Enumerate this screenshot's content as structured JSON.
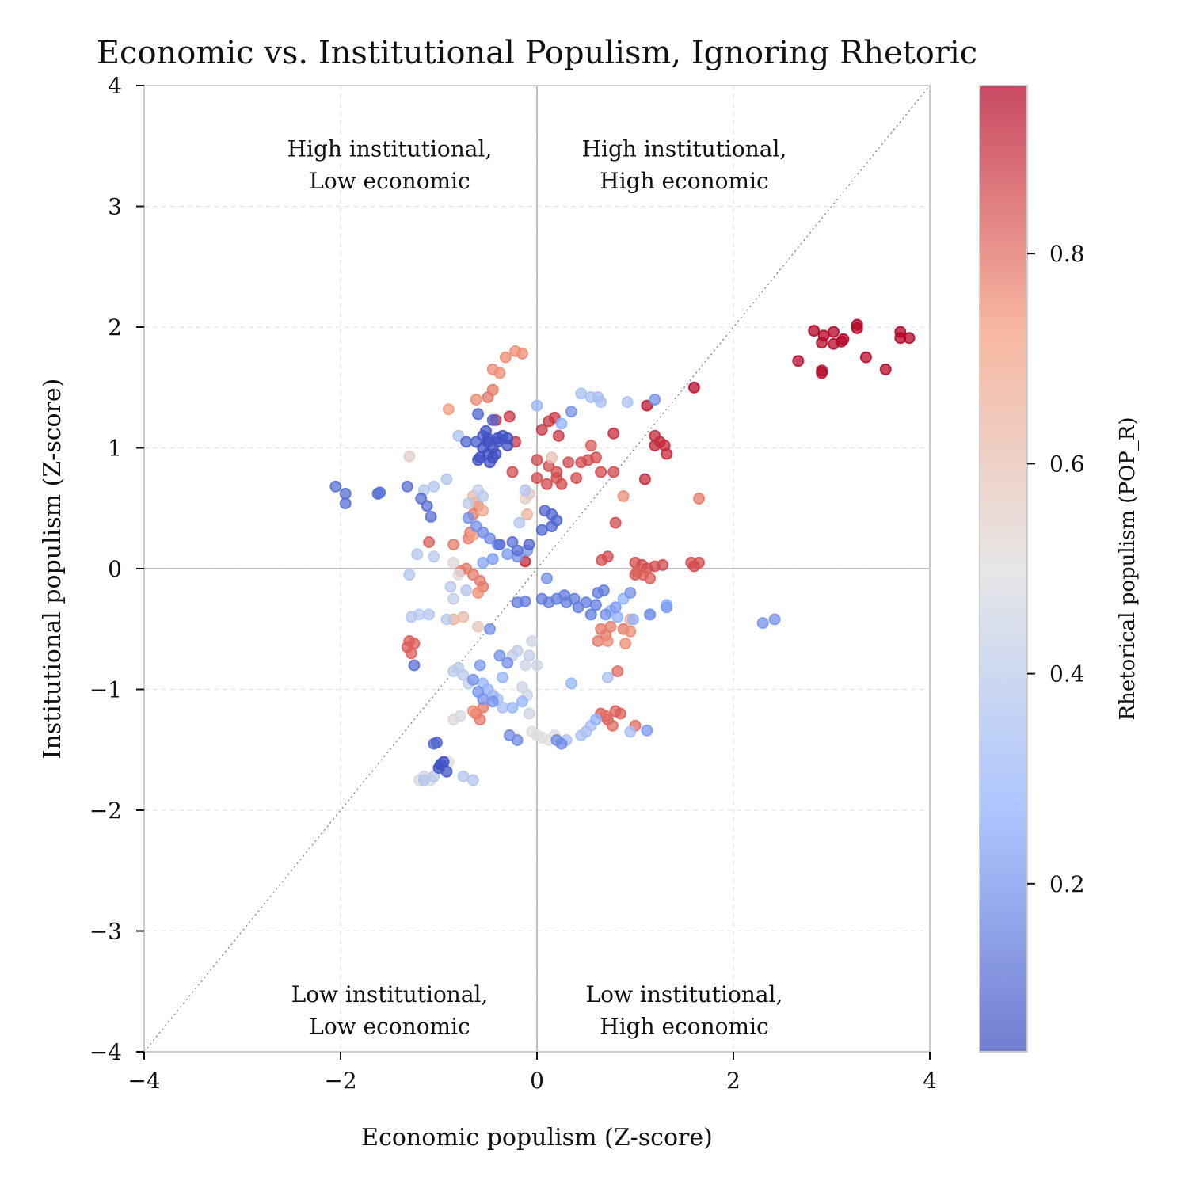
{
  "chart_data": {
    "type": "scatter",
    "title": "Economic vs. Institutional Populism, Ignoring Rhetoric",
    "xlabel": "Economic populism (Z-score)",
    "ylabel": "Institutional populism (Z-score)",
    "xlim": [
      -4,
      4
    ],
    "ylim": [
      -4,
      4
    ],
    "xticks": [
      -4,
      -2,
      0,
      2,
      4
    ],
    "yticks": [
      -4,
      -3,
      -2,
      -1,
      0,
      1,
      2,
      3,
      4
    ],
    "xtick_labels": [
      "−4",
      "−2",
      "0",
      "2",
      "4"
    ],
    "ytick_labels": [
      "−4",
      "−3",
      "−2",
      "−1",
      "0",
      "1",
      "2",
      "3",
      "4"
    ],
    "grid": true,
    "reference_lines": [
      "x=0",
      "y=0",
      "y=x (dotted)"
    ],
    "quadrant_labels": [
      {
        "lines": [
          "High institutional,",
          "Low economic"
        ],
        "x": -1.5,
        "y": 3.35
      },
      {
        "lines": [
          "High institutional,",
          "High economic"
        ],
        "x": 1.5,
        "y": 3.35
      },
      {
        "lines": [
          "Low institutional,",
          "Low economic"
        ],
        "x": -1.5,
        "y": -3.65
      },
      {
        "lines": [
          "Low institutional,",
          "High economic"
        ],
        "x": 1.5,
        "y": -3.65
      }
    ],
    "colorbar": {
      "label": "Rhetorical populism (POP_R)",
      "colormap": "coolwarm",
      "range": [
        0.04,
        0.96
      ],
      "ticks": [
        0.2,
        0.4,
        0.6,
        0.8
      ],
      "tick_labels": [
        "0.2",
        "0.4",
        "0.6",
        "0.8"
      ]
    },
    "points": [
      [
        2.82,
        1.97,
        0.96
      ],
      [
        2.92,
        1.93,
        0.96
      ],
      [
        3.02,
        1.96,
        0.96
      ],
      [
        3.12,
        1.9,
        0.96
      ],
      [
        3.26,
        2.02,
        0.96
      ],
      [
        3.26,
        1.99,
        0.96
      ],
      [
        3.7,
        1.96,
        0.96
      ],
      [
        3.7,
        1.91,
        0.96
      ],
      [
        3.79,
        1.91,
        0.96
      ],
      [
        2.9,
        1.87,
        0.95
      ],
      [
        3.02,
        1.86,
        0.95
      ],
      [
        3.1,
        1.88,
        0.95
      ],
      [
        3.35,
        1.75,
        0.95
      ],
      [
        2.66,
        1.72,
        0.95
      ],
      [
        2.9,
        1.64,
        0.95
      ],
      [
        2.9,
        1.62,
        0.95
      ],
      [
        3.55,
        1.65,
        0.95
      ],
      [
        1.6,
        1.5,
        0.95
      ],
      [
        1.12,
        1.35,
        0.93
      ],
      [
        1.2,
        1.1,
        0.9
      ],
      [
        1.25,
        1.05,
        0.9
      ],
      [
        1.3,
        1.02,
        0.9
      ],
      [
        1.32,
        0.95,
        0.9
      ],
      [
        1.2,
        1.02,
        0.9
      ],
      [
        0.78,
        1.12,
        0.9
      ],
      [
        1.1,
        0.74,
        0.9
      ],
      [
        -0.12,
        0.06,
        0.9
      ],
      [
        0.05,
        1.15,
        0.88
      ],
      [
        0.12,
        1.22,
        0.88
      ],
      [
        0.18,
        1.25,
        0.88
      ],
      [
        0.22,
        1.1,
        0.88
      ],
      [
        -0.28,
        1.26,
        0.88
      ],
      [
        -0.42,
        1.23,
        0.88
      ],
      [
        -0.22,
        1.05,
        0.88
      ],
      [
        -0.25,
        0.8,
        0.85
      ],
      [
        0.0,
        0.75,
        0.85
      ],
      [
        0.1,
        0.7,
        0.85
      ],
      [
        0.2,
        0.75,
        0.85
      ],
      [
        0.25,
        0.7,
        0.85
      ],
      [
        0.4,
        0.75,
        0.85
      ],
      [
        0.45,
        0.88,
        0.85
      ],
      [
        0.52,
        0.9,
        0.85
      ],
      [
        0.32,
        0.88,
        0.85
      ],
      [
        0.6,
        0.92,
        0.85
      ],
      [
        0.65,
        0.8,
        0.85
      ],
      [
        0.78,
        0.8,
        0.85
      ],
      [
        0.0,
        0.9,
        0.85
      ],
      [
        0.12,
        0.85,
        0.85
      ],
      [
        0.55,
        1.02,
        0.82
      ],
      [
        0.2,
        0.8,
        0.85
      ],
      [
        0.8,
        0.38,
        0.85
      ],
      [
        0.66,
        0.07,
        0.85
      ],
      [
        0.72,
        0.1,
        0.85
      ],
      [
        1.0,
        0.05,
        0.85
      ],
      [
        1.07,
        0.03,
        0.85
      ],
      [
        1.12,
        0.0,
        0.85
      ],
      [
        1.2,
        0.02,
        0.85
      ],
      [
        1.28,
        0.03,
        0.85
      ],
      [
        1.57,
        0.05,
        0.85
      ],
      [
        1.65,
        0.05,
        0.85
      ],
      [
        1.6,
        0.02,
        0.85
      ],
      [
        1.02,
        -0.03,
        0.82
      ],
      [
        1.08,
        -0.05,
        0.82
      ],
      [
        1.15,
        -0.08,
        0.82
      ],
      [
        1.0,
        -0.05,
        0.82
      ],
      [
        -1.32,
        -0.65,
        0.82
      ],
      [
        -1.3,
        -0.6,
        0.82
      ],
      [
        -1.25,
        -0.62,
        0.82
      ],
      [
        -1.28,
        -0.7,
        0.82
      ],
      [
        -1.1,
        0.22,
        0.82
      ],
      [
        0.65,
        -1.2,
        0.82
      ],
      [
        0.72,
        -1.25,
        0.82
      ],
      [
        0.8,
        -1.18,
        0.82
      ],
      [
        0.85,
        -1.2,
        0.82
      ],
      [
        0.77,
        -1.3,
        0.8
      ],
      [
        1.0,
        -1.3,
        0.8
      ],
      [
        0.7,
        -1.22,
        0.8
      ],
      [
        0.82,
        -0.85,
        0.8
      ],
      [
        -0.5,
        1.42,
        0.78
      ],
      [
        -0.45,
        1.48,
        0.78
      ],
      [
        -0.38,
        1.62,
        0.75
      ],
      [
        -0.45,
        1.65,
        0.75
      ],
      [
        -0.32,
        1.75,
        0.75
      ],
      [
        -0.22,
        1.8,
        0.75
      ],
      [
        -0.15,
        1.78,
        0.75
      ],
      [
        -0.62,
        1.4,
        0.75
      ],
      [
        -0.9,
        1.32,
        0.72
      ],
      [
        -0.85,
        0.2,
        0.78
      ],
      [
        -0.7,
        0.25,
        0.78
      ],
      [
        -0.68,
        0.3,
        0.78
      ],
      [
        -0.65,
        0.45,
        0.78
      ],
      [
        -0.6,
        0.52,
        0.78
      ],
      [
        -0.72,
        0.0,
        0.78
      ],
      [
        -0.65,
        -0.05,
        0.78
      ],
      [
        -0.58,
        -0.1,
        0.78
      ],
      [
        -0.55,
        -0.15,
        0.78
      ],
      [
        -0.6,
        -0.2,
        0.75
      ],
      [
        -0.78,
        -0.02,
        0.78
      ],
      [
        0.65,
        -0.5,
        0.78
      ],
      [
        0.7,
        -0.55,
        0.78
      ],
      [
        0.62,
        -0.6,
        0.78
      ],
      [
        0.75,
        -0.48,
        0.78
      ],
      [
        0.88,
        -0.5,
        0.78
      ],
      [
        0.95,
        -0.52,
        0.75
      ],
      [
        0.9,
        -0.62,
        0.75
      ],
      [
        0.72,
        -0.6,
        0.75
      ],
      [
        -0.62,
        -1.2,
        0.78
      ],
      [
        -0.55,
        -1.15,
        0.78
      ],
      [
        -0.58,
        -1.25,
        0.78
      ],
      [
        -0.65,
        -1.18,
        0.75
      ],
      [
        1.65,
        0.58,
        0.78
      ],
      [
        0.88,
        0.6,
        0.75
      ],
      [
        -0.62,
        0.55,
        0.7
      ],
      [
        -0.55,
        0.48,
        0.68
      ],
      [
        -0.65,
        0.28,
        0.7
      ],
      [
        -0.1,
        0.45,
        0.65
      ],
      [
        0.15,
        0.92,
        0.6
      ],
      [
        -0.65,
        0.6,
        0.62
      ],
      [
        -0.08,
        0.62,
        0.58
      ],
      [
        -0.85,
        -0.42,
        0.65
      ],
      [
        -0.75,
        -0.4,
        0.62
      ],
      [
        0.95,
        -0.42,
        0.68
      ],
      [
        -1.3,
        0.93,
        0.55
      ],
      [
        -0.85,
        0.05,
        0.52
      ],
      [
        -0.8,
        -0.05,
        0.5
      ],
      [
        -0.6,
        -0.48,
        0.58
      ],
      [
        -0.85,
        -1.25,
        0.52
      ],
      [
        -0.78,
        -1.22,
        0.48
      ],
      [
        -0.9,
        -1.6,
        0.5
      ],
      [
        -1.2,
        -1.75,
        0.48
      ],
      [
        -1.15,
        -1.72,
        0.45
      ],
      [
        -1.08,
        -1.75,
        0.48
      ],
      [
        -0.12,
        0.58,
        0.55
      ],
      [
        -0.05,
        -0.6,
        0.45
      ],
      [
        -0.08,
        -0.72,
        0.42
      ],
      [
        -0.12,
        -0.8,
        0.45
      ],
      [
        -0.2,
        -0.68,
        0.42
      ],
      [
        -0.25,
        -0.72,
        0.42
      ],
      [
        0.0,
        -0.8,
        0.45
      ],
      [
        -0.15,
        -0.98,
        0.45
      ],
      [
        -0.05,
        -1.35,
        0.5
      ],
      [
        0.05,
        -1.4,
        0.5
      ],
      [
        0.12,
        -1.42,
        0.5
      ],
      [
        0.18,
        -1.38,
        0.5
      ],
      [
        0.0,
        -1.38,
        0.5
      ],
      [
        -0.1,
        -1.05,
        0.45
      ],
      [
        -0.08,
        -1.2,
        0.45
      ],
      [
        -0.6,
        0.65,
        0.42
      ],
      [
        -0.55,
        0.6,
        0.4
      ],
      [
        -1.15,
        0.65,
        0.38
      ],
      [
        -1.05,
        0.68,
        0.38
      ],
      [
        -0.92,
        0.74,
        0.38
      ],
      [
        -0.7,
        0.54,
        0.4
      ],
      [
        -0.18,
        0.38,
        0.38
      ],
      [
        -0.85,
        -0.25,
        0.42
      ],
      [
        -0.88,
        -0.15,
        0.4
      ],
      [
        -0.72,
        -0.18,
        0.38
      ],
      [
        -1.2,
        -0.38,
        0.4
      ],
      [
        -1.1,
        -0.38,
        0.38
      ],
      [
        -1.28,
        -0.4,
        0.38
      ],
      [
        -1.22,
        0.12,
        0.38
      ],
      [
        -1.05,
        0.1,
        0.4
      ],
      [
        -1.3,
        -0.05,
        0.38
      ],
      [
        -0.92,
        -0.42,
        0.4
      ],
      [
        -0.8,
        -0.82,
        0.4
      ],
      [
        -0.75,
        -0.88,
        0.4
      ],
      [
        -0.7,
        -0.95,
        0.42
      ],
      [
        -0.85,
        -0.85,
        0.4
      ],
      [
        -0.75,
        -1.72,
        0.38
      ],
      [
        -0.65,
        -1.75,
        0.38
      ],
      [
        -1.0,
        -1.65,
        0.4
      ],
      [
        -1.05,
        -1.72,
        0.4
      ],
      [
        -1.15,
        -1.75,
        0.38
      ],
      [
        0.45,
        1.45,
        0.35
      ],
      [
        0.55,
        1.42,
        0.35
      ],
      [
        0.62,
        1.42,
        0.35
      ],
      [
        0.65,
        1.38,
        0.35
      ],
      [
        0.92,
        1.38,
        0.35
      ],
      [
        -0.8,
        1.1,
        0.35
      ],
      [
        -0.12,
        0.65,
        0.38
      ],
      [
        -0.4,
        -1.08,
        0.35
      ],
      [
        -0.35,
        -1.15,
        0.35
      ],
      [
        0.3,
        -1.42,
        0.35
      ],
      [
        0.45,
        -1.38,
        0.35
      ],
      [
        0.5,
        -1.35,
        0.35
      ],
      [
        0.95,
        -1.35,
        0.35
      ],
      [
        0.72,
        -0.9,
        0.35
      ],
      [
        0.55,
        -1.3,
        0.35
      ],
      [
        -0.5,
        -1.0,
        0.3
      ],
      [
        -0.45,
        -1.05,
        0.3
      ],
      [
        -0.55,
        -0.95,
        0.3
      ],
      [
        -0.35,
        -0.9,
        0.3
      ],
      [
        -0.25,
        -1.15,
        0.3
      ],
      [
        -0.15,
        -1.1,
        0.3
      ],
      [
        0.0,
        1.35,
        0.3
      ],
      [
        0.25,
        1.2,
        0.28
      ],
      [
        0.6,
        -1.25,
        0.28
      ],
      [
        0.35,
        -0.95,
        0.3
      ],
      [
        0.75,
        -0.35,
        0.28
      ],
      [
        0.88,
        -0.25,
        0.28
      ],
      [
        0.82,
        -0.4,
        0.28
      ],
      [
        1.15,
        -0.38,
        0.28
      ],
      [
        1.32,
        -0.3,
        0.28
      ],
      [
        0.98,
        -0.42,
        0.28
      ],
      [
        -0.55,
        0.05,
        0.25
      ],
      [
        -0.45,
        0.08,
        0.22
      ],
      [
        -0.3,
        0.12,
        0.22
      ],
      [
        -0.2,
        0.1,
        0.2
      ],
      [
        -0.1,
        0.15,
        0.2
      ],
      [
        -0.4,
        0.2,
        0.2
      ],
      [
        -0.7,
        0.42,
        0.2
      ],
      [
        -0.62,
        0.35,
        0.2
      ],
      [
        -0.55,
        0.3,
        0.18
      ],
      [
        -0.48,
        0.25,
        0.18
      ],
      [
        -0.58,
        -0.8,
        0.22
      ],
      [
        -0.65,
        -0.92,
        0.2
      ],
      [
        -0.6,
        -1.02,
        0.2
      ],
      [
        -0.55,
        -1.08,
        0.2
      ],
      [
        -0.45,
        -1.1,
        0.2
      ],
      [
        -0.38,
        -0.72,
        0.2
      ],
      [
        -0.3,
        -0.78,
        0.2
      ],
      [
        -0.48,
        -0.5,
        0.2
      ],
      [
        2.3,
        -0.45,
        0.2
      ],
      [
        2.42,
        -0.42,
        0.2
      ],
      [
        1.2,
        1.4,
        0.2
      ],
      [
        0.95,
        -0.2,
        0.2
      ],
      [
        0.7,
        -0.38,
        0.2
      ],
      [
        0.8,
        -0.32,
        0.22
      ],
      [
        1.32,
        -0.32,
        0.22
      ],
      [
        1.15,
        -0.38,
        0.2
      ],
      [
        1.12,
        -1.34,
        0.22
      ],
      [
        0.35,
        1.3,
        0.2
      ],
      [
        0.1,
        -0.08,
        0.2
      ],
      [
        -0.2,
        -1.42,
        0.18
      ],
      [
        -0.28,
        -1.38,
        0.18
      ],
      [
        0.25,
        -1.45,
        0.18
      ],
      [
        0.2,
        -1.42,
        0.18
      ],
      [
        0.05,
        -0.25,
        0.15
      ],
      [
        0.12,
        -0.28,
        0.15
      ],
      [
        -0.2,
        -0.28,
        0.15
      ],
      [
        -0.12,
        -0.27,
        0.15
      ],
      [
        0.2,
        -0.25,
        0.15
      ],
      [
        0.3,
        -0.28,
        0.15
      ],
      [
        0.38,
        -0.25,
        0.15
      ],
      [
        0.5,
        -0.28,
        0.15
      ],
      [
        0.42,
        -0.32,
        0.15
      ],
      [
        0.55,
        -0.38,
        0.15
      ],
      [
        0.6,
        -0.3,
        0.15
      ],
      [
        0.62,
        -0.2,
        0.15
      ],
      [
        0.28,
        -0.22,
        0.15
      ],
      [
        0.68,
        -0.18,
        0.15
      ],
      [
        -2.05,
        0.68,
        0.12
      ],
      [
        -1.95,
        0.62,
        0.12
      ],
      [
        -1.95,
        0.54,
        0.12
      ],
      [
        -1.62,
        0.62,
        0.12
      ],
      [
        -1.6,
        0.63,
        0.12
      ],
      [
        -1.32,
        0.68,
        0.12
      ],
      [
        -1.18,
        0.58,
        0.12
      ],
      [
        -1.12,
        0.52,
        0.12
      ],
      [
        -1.08,
        0.43,
        0.12
      ],
      [
        -0.6,
        1.28,
        0.1
      ],
      [
        -0.45,
        1.23,
        0.1
      ],
      [
        -0.62,
        1.05,
        0.08
      ],
      [
        -0.55,
        1.1,
        0.08
      ],
      [
        -0.5,
        1.05,
        0.06
      ],
      [
        -0.45,
        1.0,
        0.06
      ],
      [
        -0.4,
        1.05,
        0.06
      ],
      [
        -0.35,
        1.1,
        0.06
      ],
      [
        -0.3,
        1.02,
        0.06
      ],
      [
        -0.5,
        0.95,
        0.05
      ],
      [
        -0.42,
        0.95,
        0.05
      ],
      [
        -0.55,
        1.0,
        0.05
      ],
      [
        -0.58,
        0.92,
        0.05
      ],
      [
        -0.48,
        0.88,
        0.05
      ],
      [
        -0.6,
        0.9,
        0.05
      ],
      [
        -0.4,
        1.08,
        0.05
      ],
      [
        -0.3,
        1.08,
        0.05
      ],
      [
        -0.5,
        1.08,
        0.05
      ],
      [
        -0.45,
        0.92,
        0.05
      ],
      [
        -0.72,
        1.05,
        0.1
      ],
      [
        -0.52,
        1.14,
        0.06
      ],
      [
        0.05,
        0.32,
        0.1
      ],
      [
        0.08,
        0.48,
        0.1
      ],
      [
        0.15,
        0.45,
        0.1
      ],
      [
        0.2,
        0.4,
        0.1
      ],
      [
        0.15,
        0.35,
        0.1
      ],
      [
        -0.08,
        0.2,
        0.1
      ],
      [
        -0.2,
        0.15,
        0.12
      ],
      [
        -0.25,
        0.22,
        0.12
      ],
      [
        -0.38,
        0.2,
        0.12
      ],
      [
        -1.25,
        -0.8,
        0.12
      ],
      [
        -1.05,
        -1.45,
        0.1
      ],
      [
        -1.02,
        -1.44,
        0.1
      ],
      [
        -1.0,
        -1.65,
        0.06
      ],
      [
        -0.95,
        -1.6,
        0.05
      ],
      [
        -0.98,
        -1.62,
        0.05
      ],
      [
        -0.92,
        -1.68,
        0.06
      ]
    ]
  }
}
